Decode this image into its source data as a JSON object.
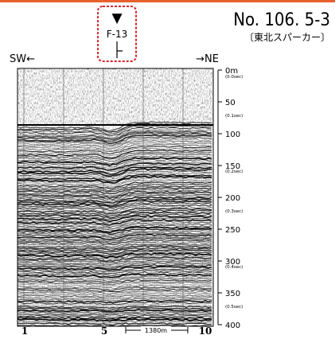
{
  "header": {
    "title": "No. 106. 5-3",
    "subtitle": "〔東北スパーカー〕"
  },
  "marker": {
    "symbol": "▼",
    "label": "F-13"
  },
  "directions": {
    "left": "SW←",
    "right": "→NE"
  },
  "depth_axis": {
    "range": [
      0,
      400
    ],
    "ticks": [
      {
        "value": 0,
        "label": "0m"
      },
      50,
      100,
      150,
      200,
      250,
      300,
      350,
      400
    ],
    "time_labels": [
      {
        "depth": 0,
        "label": "(0.0sec)"
      },
      {
        "depth": 70,
        "label": "(0.1sec)"
      },
      {
        "depth": 150,
        "label": "(0.2sec)"
      },
      {
        "depth": 220,
        "label": "(0.3sec)"
      },
      {
        "depth": 300,
        "label": "(0.4sec)"
      },
      {
        "depth": 370,
        "label": "(0.5sec)"
      }
    ]
  },
  "stations": [
    "1",
    "5",
    "10"
  ],
  "scale_bar": "1380m"
}
